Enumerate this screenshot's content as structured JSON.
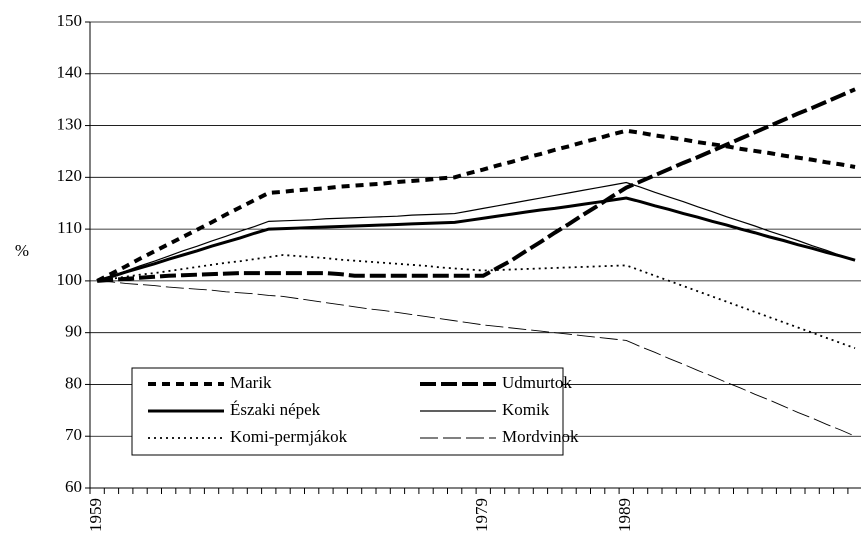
{
  "chart_data": {
    "type": "line",
    "y_label": "%",
    "grid": true,
    "ylim": [
      60,
      150
    ],
    "yticks": [
      60,
      70,
      80,
      90,
      100,
      110,
      120,
      130,
      140,
      150
    ],
    "categories": [
      "1959",
      null,
      null,
      null,
      null,
      null,
      null,
      null,
      null,
      null,
      null,
      null,
      null,
      null,
      null,
      null,
      null,
      null,
      null,
      null,
      null,
      null,
      null,
      null,
      null,
      null,
      null,
      "1979",
      null,
      null,
      null,
      null,
      null,
      null,
      null,
      null,
      null,
      "1989",
      null,
      null,
      null,
      null,
      null,
      null,
      null,
      null,
      null,
      null,
      null,
      null,
      null,
      null,
      null,
      null
    ],
    "series": [
      {
        "name": "Marik",
        "color": "#000",
        "width": 4,
        "dash": "8,6",
        "values": [
          100,
          101.4,
          102.8,
          104.3,
          105.7,
          107.1,
          108.5,
          109.9,
          111.3,
          112.8,
          114.2,
          115.6,
          117,
          117.2,
          117.5,
          117.7,
          117.9,
          118.2,
          118.4,
          118.6,
          118.8,
          119.1,
          119.3,
          119.5,
          119.8,
          120,
          120.8,
          121.5,
          122.3,
          123,
          123.8,
          124.5,
          125.3,
          126,
          126.8,
          127.5,
          128.3,
          129,
          128.6,
          128.1,
          127.7,
          127.3,
          126.8,
          126.4,
          126,
          125.5,
          125.1,
          124.7,
          124.2,
          123.8,
          123.4,
          122.9,
          122.5,
          122
        ]
      },
      {
        "name": "Udmurtok",
        "color": "#000",
        "width": 4,
        "dash": "16,5",
        "values": [
          100,
          100.2,
          100.4,
          100.6,
          100.8,
          101,
          101.1,
          101.2,
          101.3,
          101.4,
          101.5,
          101.5,
          101.5,
          101.5,
          101.5,
          101.5,
          101.5,
          101.3,
          101,
          101,
          101,
          101,
          101,
          101,
          101,
          101,
          101,
          101,
          102.5,
          104,
          105.8,
          107.5,
          109.3,
          111,
          112.8,
          114.5,
          116.3,
          118,
          119.2,
          120.4,
          121.6,
          122.8,
          123.9,
          125.1,
          126.3,
          127.5,
          128.7,
          129.9,
          131.1,
          132.3,
          133.4,
          134.6,
          135.8,
          137
        ]
      },
      {
        "name": "Északi népek",
        "color": "#000",
        "width": 3,
        "dash": "none",
        "values": [
          100,
          100.8,
          101.7,
          102.5,
          103.3,
          104.2,
          105,
          105.8,
          106.7,
          107.5,
          108.3,
          109.2,
          110,
          110.1,
          110.2,
          110.3,
          110.4,
          110.5,
          110.6,
          110.7,
          110.8,
          110.9,
          111,
          111.1,
          111.2,
          111.3,
          111.7,
          112.1,
          112.5,
          112.9,
          113.3,
          113.7,
          114,
          114.4,
          114.8,
          115.2,
          115.6,
          116,
          115.3,
          114.5,
          113.8,
          113,
          112.3,
          111.5,
          110.8,
          110,
          109.3,
          108.5,
          107.8,
          107,
          106.3,
          105.5,
          104.8,
          104
        ]
      },
      {
        "name": "Komik",
        "color": "#000",
        "width": 1.2,
        "dash": "none",
        "values": [
          100,
          101,
          101.9,
          102.9,
          103.8,
          104.8,
          105.8,
          106.7,
          107.7,
          108.6,
          109.6,
          110.5,
          111.5,
          111.6,
          111.7,
          111.8,
          112,
          112.1,
          112.2,
          112.3,
          112.4,
          112.5,
          112.7,
          112.8,
          112.9,
          113,
          113.5,
          114,
          114.5,
          115,
          115.5,
          116,
          116.5,
          117,
          117.5,
          118,
          118.5,
          119,
          118.1,
          117.1,
          116.2,
          115.3,
          114.3,
          113.4,
          112.4,
          111.5,
          110.6,
          109.6,
          108.7,
          107.8,
          106.8,
          105.9,
          104.9,
          104
        ]
      },
      {
        "name": "Komi-permjákok",
        "color": "#000",
        "width": 1.8,
        "dash": "2,4",
        "values": [
          100,
          100.4,
          100.8,
          101.2,
          101.5,
          101.9,
          102.3,
          102.7,
          103.1,
          103.5,
          103.8,
          104.2,
          104.6,
          105,
          104.8,
          104.6,
          104.4,
          104.1,
          103.9,
          103.7,
          103.5,
          103.3,
          103.1,
          102.9,
          102.6,
          102.4,
          102.2,
          102,
          102.1,
          102.2,
          102.3,
          102.4,
          102.5,
          102.6,
          102.7,
          102.8,
          102.9,
          103,
          102,
          101,
          100,
          99,
          98,
          97,
          96,
          95,
          94,
          93,
          92,
          91,
          90,
          89,
          88,
          87
        ]
      },
      {
        "name": "Mordvinok",
        "color": "#000",
        "width": 0.9,
        "dash": "18,5",
        "values": [
          100,
          99.8,
          99.5,
          99.3,
          99.1,
          98.8,
          98.6,
          98.4,
          98.2,
          97.9,
          97.7,
          97.5,
          97.2,
          97,
          96.6,
          96.2,
          95.8,
          95.4,
          95,
          94.6,
          94.3,
          93.9,
          93.5,
          93.1,
          92.7,
          92.3,
          91.9,
          91.5,
          91.2,
          90.9,
          90.6,
          90.3,
          90,
          89.7,
          89.4,
          89.1,
          88.8,
          88.5,
          87.3,
          86.2,
          85,
          83.9,
          82.7,
          81.6,
          80.4,
          79.3,
          78.1,
          77,
          75.8,
          74.6,
          73.5,
          72.3,
          71.2,
          70
        ]
      }
    ]
  }
}
